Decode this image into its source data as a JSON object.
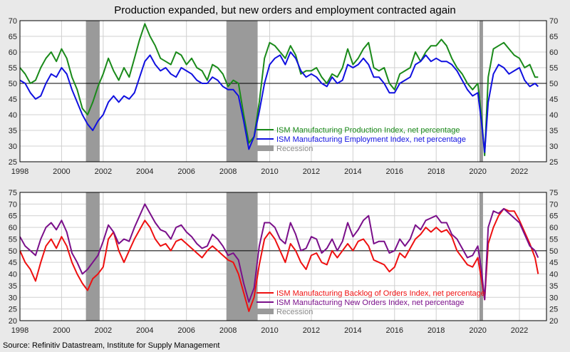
{
  "title": "Production expanded, but new orders and employment contracted again",
  "source": "Source: Refinitiv Datastream, Institute for Supply Management",
  "colors": {
    "background": "#e9e9e9",
    "plot_background": "#ffffff",
    "grid": "#d0d0d0",
    "recession": "#9a9a9a",
    "green": "#1a8a1a",
    "blue": "#1010e0",
    "red": "#ee1010",
    "purple": "#7a0f8a",
    "axis": "#000000"
  },
  "chart_data": [
    {
      "type": "line",
      "panel": "top",
      "xlim": [
        1998,
        2023.3
      ],
      "ylim": [
        25,
        70
      ],
      "xticks": [
        "1998",
        "2000",
        "2002",
        "2004",
        "2006",
        "2008",
        "2010",
        "2012",
        "2014",
        "2016",
        "2018",
        "2020",
        "2022"
      ],
      "yticks": [
        "25",
        "30",
        "35",
        "40",
        "45",
        "50",
        "55",
        "60",
        "65",
        "70"
      ],
      "reference_line": 50,
      "recessions": [
        [
          2001.17,
          2001.83
        ],
        [
          2007.92,
          2009.42
        ],
        [
          2020.08,
          2020.25
        ]
      ],
      "legend": [
        "ISM Manufacturing Production Index, net percentage",
        "ISM Manufacturing Employment Index, net percentage",
        "Recession"
      ],
      "series": [
        {
          "name": "ISM Manufacturing Production Index, net percentage",
          "color": "#1a8a1a",
          "x": [
            1998.0,
            1998.25,
            1998.5,
            1998.75,
            1999.0,
            1999.25,
            1999.5,
            1999.75,
            2000.0,
            2000.25,
            2000.5,
            2000.75,
            2001.0,
            2001.25,
            2001.5,
            2001.75,
            2002.0,
            2002.25,
            2002.5,
            2002.75,
            2003.0,
            2003.25,
            2003.5,
            2003.75,
            2004.0,
            2004.25,
            2004.5,
            2004.75,
            2005.0,
            2005.25,
            2005.5,
            2005.75,
            2006.0,
            2006.25,
            2006.5,
            2006.75,
            2007.0,
            2007.25,
            2007.5,
            2007.75,
            2008.0,
            2008.25,
            2008.5,
            2008.75,
            2009.0,
            2009.25,
            2009.5,
            2009.75,
            2010.0,
            2010.25,
            2010.5,
            2010.75,
            2011.0,
            2011.25,
            2011.5,
            2011.75,
            2012.0,
            2012.25,
            2012.5,
            2012.75,
            2013.0,
            2013.25,
            2013.5,
            2013.75,
            2014.0,
            2014.25,
            2014.5,
            2014.75,
            2015.0,
            2015.25,
            2015.5,
            2015.75,
            2016.0,
            2016.25,
            2016.5,
            2016.75,
            2017.0,
            2017.25,
            2017.5,
            2017.75,
            2018.0,
            2018.25,
            2018.5,
            2018.75,
            2019.0,
            2019.25,
            2019.5,
            2019.75,
            2020.0,
            2020.17,
            2020.33,
            2020.5,
            2020.75,
            2021.0,
            2021.25,
            2021.5,
            2021.75,
            2022.0,
            2022.25,
            2022.5,
            2022.75,
            2022.9
          ],
          "y": [
            55,
            53,
            50,
            51,
            55,
            58,
            60,
            57,
            61,
            58,
            52,
            48,
            42,
            40,
            44,
            49,
            53,
            58,
            54,
            51,
            55,
            52,
            58,
            64,
            69,
            65,
            62,
            58,
            57,
            56,
            60,
            59,
            56,
            58,
            55,
            54,
            51,
            56,
            55,
            53,
            49,
            51,
            50,
            40,
            31,
            33,
            44,
            58,
            63,
            62,
            60,
            58,
            62,
            59,
            53,
            54,
            54,
            55,
            52,
            50,
            53,
            52,
            55,
            61,
            56,
            58,
            61,
            63,
            55,
            54,
            55,
            50,
            48,
            53,
            54,
            55,
            60,
            57,
            60,
            62,
            62,
            64,
            62,
            58,
            55,
            53,
            50,
            48,
            50,
            40,
            27,
            52,
            61,
            62,
            63,
            61,
            59,
            58,
            55,
            56,
            52,
            52
          ]
        },
        {
          "name": "ISM Manufacturing Employment Index, net percentage",
          "color": "#1010e0",
          "x": [
            1998.0,
            1998.25,
            1998.5,
            1998.75,
            1999.0,
            1999.25,
            1999.5,
            1999.75,
            2000.0,
            2000.25,
            2000.5,
            2000.75,
            2001.0,
            2001.25,
            2001.5,
            2001.75,
            2002.0,
            2002.25,
            2002.5,
            2002.75,
            2003.0,
            2003.25,
            2003.5,
            2003.75,
            2004.0,
            2004.25,
            2004.5,
            2004.75,
            2005.0,
            2005.25,
            2005.5,
            2005.75,
            2006.0,
            2006.25,
            2006.5,
            2006.75,
            2007.0,
            2007.25,
            2007.5,
            2007.75,
            2008.0,
            2008.25,
            2008.5,
            2008.75,
            2009.0,
            2009.25,
            2009.5,
            2009.75,
            2010.0,
            2010.25,
            2010.5,
            2010.75,
            2011.0,
            2011.25,
            2011.5,
            2011.75,
            2012.0,
            2012.25,
            2012.5,
            2012.75,
            2013.0,
            2013.25,
            2013.5,
            2013.75,
            2014.0,
            2014.25,
            2014.5,
            2014.75,
            2015.0,
            2015.25,
            2015.5,
            2015.75,
            2016.0,
            2016.25,
            2016.5,
            2016.75,
            2017.0,
            2017.25,
            2017.5,
            2017.75,
            2018.0,
            2018.25,
            2018.5,
            2018.75,
            2019.0,
            2019.25,
            2019.5,
            2019.75,
            2020.0,
            2020.17,
            2020.33,
            2020.5,
            2020.75,
            2021.0,
            2021.25,
            2021.5,
            2021.75,
            2022.0,
            2022.25,
            2022.5,
            2022.75,
            2022.9
          ],
          "y": [
            51,
            50,
            47,
            45,
            46,
            50,
            53,
            52,
            55,
            53,
            48,
            44,
            40,
            37,
            35,
            38,
            40,
            44,
            46,
            44,
            46,
            45,
            47,
            52,
            57,
            59,
            56,
            54,
            55,
            53,
            52,
            55,
            54,
            53,
            51,
            50,
            50,
            52,
            51,
            49,
            48,
            48,
            46,
            38,
            29,
            33,
            41,
            50,
            56,
            58,
            59,
            56,
            60,
            58,
            54,
            52,
            53,
            52,
            50,
            49,
            52,
            50,
            51,
            56,
            55,
            56,
            58,
            56,
            52,
            52,
            50,
            47,
            47,
            50,
            51,
            52,
            56,
            57,
            59,
            57,
            58,
            57,
            57,
            56,
            54,
            51,
            48,
            46,
            47,
            38,
            28,
            44,
            53,
            56,
            55,
            53,
            54,
            55,
            51,
            49,
            50,
            49
          ]
        }
      ]
    },
    {
      "type": "line",
      "panel": "bottom",
      "xlim": [
        1998,
        2023.3
      ],
      "ylim": [
        20,
        75
      ],
      "xticks": [
        "1998",
        "2000",
        "2002",
        "2004",
        "2006",
        "2008",
        "2010",
        "2012",
        "2014",
        "2016",
        "2018",
        "2020",
        "2022"
      ],
      "yticks": [
        "20",
        "25",
        "30",
        "35",
        "40",
        "45",
        "50",
        "55",
        "60",
        "65",
        "70",
        "75"
      ],
      "reference_line": 50,
      "recessions": [
        [
          2001.17,
          2001.83
        ],
        [
          2007.92,
          2009.42
        ],
        [
          2020.08,
          2020.25
        ]
      ],
      "legend": [
        "ISM Manufacturing Backlog of Orders Index, net percentage",
        "ISM Manufacturing New Orders Index, net percentage",
        "Recession"
      ],
      "series": [
        {
          "name": "ISM Manufacturing Backlog of Orders Index, net percentage",
          "color": "#ee1010",
          "x": [
            1998.0,
            1998.25,
            1998.5,
            1998.75,
            1999.0,
            1999.25,
            1999.5,
            1999.75,
            2000.0,
            2000.25,
            2000.5,
            2000.75,
            2001.0,
            2001.25,
            2001.5,
            2001.75,
            2002.0,
            2002.25,
            2002.5,
            2002.75,
            2003.0,
            2003.25,
            2003.5,
            2003.75,
            2004.0,
            2004.25,
            2004.5,
            2004.75,
            2005.0,
            2005.25,
            2005.5,
            2005.75,
            2006.0,
            2006.25,
            2006.5,
            2006.75,
            2007.0,
            2007.25,
            2007.5,
            2007.75,
            2008.0,
            2008.25,
            2008.5,
            2008.75,
            2009.0,
            2009.25,
            2009.5,
            2009.75,
            2010.0,
            2010.25,
            2010.5,
            2010.75,
            2011.0,
            2011.25,
            2011.5,
            2011.75,
            2012.0,
            2012.25,
            2012.5,
            2012.75,
            2013.0,
            2013.25,
            2013.5,
            2013.75,
            2014.0,
            2014.25,
            2014.5,
            2014.75,
            2015.0,
            2015.25,
            2015.5,
            2015.75,
            2016.0,
            2016.25,
            2016.5,
            2016.75,
            2017.0,
            2017.25,
            2017.5,
            2017.75,
            2018.0,
            2018.25,
            2018.5,
            2018.75,
            2019.0,
            2019.25,
            2019.5,
            2019.75,
            2020.0,
            2020.17,
            2020.33,
            2020.5,
            2020.75,
            2021.0,
            2021.25,
            2021.5,
            2021.75,
            2022.0,
            2022.25,
            2022.5,
            2022.75,
            2022.9
          ],
          "y": [
            50,
            45,
            42,
            37,
            45,
            52,
            55,
            51,
            56,
            52,
            45,
            40,
            36,
            33,
            38,
            40,
            43,
            55,
            58,
            50,
            45,
            50,
            55,
            59,
            63,
            60,
            55,
            52,
            53,
            50,
            54,
            55,
            53,
            51,
            49,
            47,
            50,
            52,
            50,
            48,
            46,
            45,
            40,
            32,
            24,
            30,
            44,
            55,
            58,
            55,
            50,
            45,
            53,
            50,
            45,
            42,
            48,
            49,
            45,
            44,
            50,
            47,
            50,
            53,
            50,
            54,
            55,
            52,
            46,
            45,
            44,
            41,
            43,
            49,
            47,
            51,
            55,
            57,
            60,
            58,
            60,
            58,
            59,
            56,
            50,
            47,
            44,
            43,
            47,
            38,
            29,
            53,
            60,
            65,
            68,
            67,
            67,
            63,
            58,
            53,
            47,
            40
          ]
        },
        {
          "name": "ISM Manufacturing New Orders Index, net percentage",
          "color": "#7a0f8a",
          "x": [
            1998.0,
            1998.25,
            1998.5,
            1998.75,
            1999.0,
            1999.25,
            1999.5,
            1999.75,
            2000.0,
            2000.25,
            2000.5,
            2000.75,
            2001.0,
            2001.25,
            2001.5,
            2001.75,
            2002.0,
            2002.25,
            2002.5,
            2002.75,
            2003.0,
            2003.25,
            2003.5,
            2003.75,
            2004.0,
            2004.25,
            2004.5,
            2004.75,
            2005.0,
            2005.25,
            2005.5,
            2005.75,
            2006.0,
            2006.25,
            2006.5,
            2006.75,
            2007.0,
            2007.25,
            2007.5,
            2007.75,
            2008.0,
            2008.25,
            2008.5,
            2008.75,
            2009.0,
            2009.25,
            2009.5,
            2009.75,
            2010.0,
            2010.25,
            2010.5,
            2010.75,
            2011.0,
            2011.25,
            2011.5,
            2011.75,
            2012.0,
            2012.25,
            2012.5,
            2012.75,
            2013.0,
            2013.25,
            2013.5,
            2013.75,
            2014.0,
            2014.25,
            2014.5,
            2014.75,
            2015.0,
            2015.25,
            2015.5,
            2015.75,
            2016.0,
            2016.25,
            2016.5,
            2016.75,
            2017.0,
            2017.25,
            2017.5,
            2017.75,
            2018.0,
            2018.25,
            2018.5,
            2018.75,
            2019.0,
            2019.25,
            2019.5,
            2019.75,
            2020.0,
            2020.17,
            2020.33,
            2020.5,
            2020.75,
            2021.0,
            2021.25,
            2021.5,
            2021.75,
            2022.0,
            2022.25,
            2022.5,
            2022.75,
            2022.9
          ],
          "y": [
            56,
            52,
            50,
            48,
            55,
            60,
            62,
            59,
            63,
            58,
            49,
            45,
            40,
            42,
            45,
            48,
            54,
            61,
            58,
            53,
            55,
            54,
            60,
            65,
            70,
            66,
            62,
            59,
            58,
            55,
            60,
            61,
            58,
            56,
            53,
            51,
            52,
            57,
            55,
            52,
            48,
            49,
            46,
            36,
            28,
            34,
            52,
            62,
            62,
            60,
            55,
            53,
            62,
            57,
            50,
            51,
            56,
            55,
            49,
            51,
            55,
            50,
            54,
            62,
            56,
            59,
            63,
            65,
            53,
            54,
            54,
            49,
            50,
            55,
            52,
            55,
            61,
            59,
            63,
            64,
            65,
            62,
            62,
            57,
            55,
            51,
            47,
            48,
            52,
            42,
            29,
            60,
            67,
            66,
            68,
            66,
            64,
            62,
            57,
            52,
            50,
            47
          ]
        }
      ]
    }
  ]
}
